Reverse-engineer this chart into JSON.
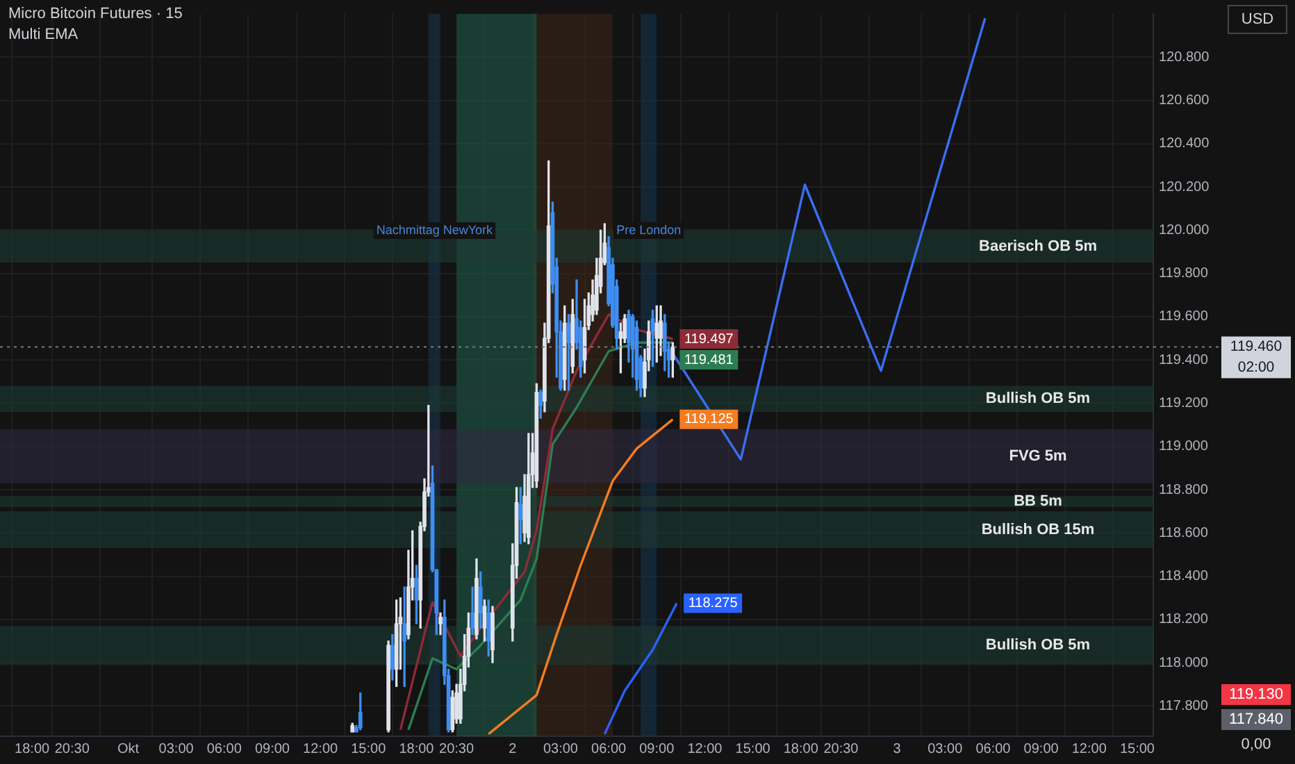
{
  "chart_data": {
    "type": "candlestick",
    "title": "Micro Bitcoin Futures · 15",
    "subtitle": "Multi EMA",
    "x": [
      "--10-01T14:00",
      "--10-01T14:15",
      "--10-01T14:30",
      "--10-01T16:15",
      "--10-01T16:30",
      "--10-01T16:45",
      "--10-01T17:00",
      "--10-01T17:15",
      "--10-01T17:30",
      "--10-01T17:45",
      "--10-01T18:00",
      "--10-01T18:15",
      "--10-01T18:30",
      "--10-01T18:45",
      "--10-01T19:00",
      "--10-01T19:15",
      "--10-01T19:30",
      "--10-01T19:45",
      "--10-01T20:00",
      "--10-01T20:15",
      "--10-01T20:30",
      "--10-01T20:45",
      "--10-01T21:00",
      "--10-01T21:15",
      "--10-01T21:30",
      "--10-01T21:45",
      "--10-01T22:00",
      "--10-01T22:15",
      "--10-01T22:30",
      "--10-01T22:45",
      "--10-02T00:00",
      "--10-02T00:15",
      "--10-02T00:30",
      "--10-02T00:45",
      "--10-02T01:00",
      "--10-02T01:15",
      "--10-02T01:30",
      "--10-02T01:45",
      "--10-02T02:00",
      "--10-02T02:15",
      "--10-02T02:30",
      "--10-02T02:45",
      "--10-02T03:00",
      "--10-02T03:15",
      "--10-02T03:30",
      "--10-02T03:45",
      "--10-02T04:00",
      "--10-02T04:15",
      "--10-02T04:30",
      "--10-02T04:45",
      "--10-02T05:00",
      "--10-02T05:15",
      "--10-02T05:30",
      "--10-02T05:45",
      "--10-02T06:00",
      "--10-02T06:15",
      "--10-02T06:30",
      "--10-02T06:45",
      "--10-02T07:00",
      "--10-02T07:15",
      "--10-02T07:30",
      "--10-02T07:45",
      "--10-02T08:00",
      "--10-02T08:15",
      "--10-02T08:30",
      "--10-02T08:45",
      "--10-02T09:00",
      "--10-02T09:15",
      "--10-02T09:30",
      "--10-02T09:45",
      "--10-02T10:00"
    ],
    "ohlc": [
      [
        117.68,
        117.72,
        117.68,
        117.71
      ],
      [
        117.7,
        117.71,
        117.68,
        117.68
      ],
      [
        117.77,
        117.86,
        117.69,
        117.7
      ],
      [
        117.69,
        118.1,
        117.68,
        118.08
      ],
      [
        118.08,
        118.13,
        117.92,
        117.97
      ],
      [
        117.97,
        118.29,
        117.89,
        118.18
      ],
      [
        118.18,
        118.3,
        117.97,
        118.21
      ],
      [
        118.18,
        118.35,
        117.89,
        118.1
      ],
      [
        118.13,
        118.52,
        118.11,
        118.35
      ],
      [
        118.35,
        118.61,
        118.29,
        118.39
      ],
      [
        118.39,
        118.45,
        118.18,
        118.29
      ],
      [
        118.29,
        118.65,
        118.16,
        118.63
      ],
      [
        118.63,
        118.85,
        118.61,
        118.79
      ],
      [
        118.79,
        119.19,
        118.77,
        118.81
      ],
      [
        118.83,
        118.91,
        118.42,
        118.43
      ],
      [
        118.43,
        118.43,
        118.13,
        118.23
      ],
      [
        118.18,
        118.23,
        118.13,
        118.21
      ],
      [
        118.21,
        118.29,
        117.9,
        117.94
      ],
      [
        117.94,
        117.97,
        117.68,
        117.69
      ],
      [
        117.69,
        117.87,
        117.68,
        117.84
      ],
      [
        117.74,
        117.9,
        117.72,
        117.86
      ],
      [
        117.74,
        117.97,
        117.72,
        117.9
      ],
      [
        117.9,
        118.13,
        117.87,
        118.03
      ],
      [
        118.03,
        118.23,
        117.98,
        118.16
      ],
      [
        118.23,
        118.35,
        118.13,
        118.16
      ],
      [
        118.13,
        118.48,
        118.11,
        118.39
      ],
      [
        118.35,
        118.42,
        118.16,
        118.23
      ],
      [
        118.16,
        118.29,
        118.1,
        118.26
      ],
      [
        118.23,
        118.29,
        118.03,
        118.1
      ],
      [
        118.06,
        118.26,
        118,
        118.23
      ],
      [
        118.16,
        118.55,
        118.1,
        118.45
      ],
      [
        118.45,
        118.81,
        118.39,
        118.74
      ],
      [
        118.73,
        118.81,
        118.55,
        118.66
      ],
      [
        118.6,
        118.87,
        118.56,
        118.77
      ],
      [
        118.58,
        119.06,
        118.55,
        118.87
      ],
      [
        118.87,
        119.06,
        118.81,
        118.97
      ],
      [
        118.84,
        119.29,
        118.81,
        119.25
      ],
      [
        119.25,
        119.26,
        119.13,
        119.19
      ],
      [
        119.21,
        119.57,
        119.16,
        119.5
      ],
      [
        119.5,
        120.32,
        119.48,
        120.02
      ],
      [
        120.08,
        120.13,
        119.71,
        119.75
      ],
      [
        119.83,
        119.87,
        119.32,
        119.53
      ],
      [
        119.53,
        119.58,
        119.26,
        119.27
      ],
      [
        119.31,
        119.65,
        119.26,
        119.57
      ],
      [
        119.57,
        119.61,
        119.26,
        119.48
      ],
      [
        119.37,
        119.68,
        119.34,
        119.61
      ],
      [
        119.59,
        119.77,
        119.45,
        119.48
      ],
      [
        119.55,
        119.58,
        119.32,
        119.37
      ],
      [
        119.4,
        119.68,
        119.34,
        119.55
      ],
      [
        119.56,
        119.71,
        119.54,
        119.65
      ],
      [
        119.61,
        119.77,
        119.58,
        119.7
      ],
      [
        119.63,
        119.87,
        119.61,
        119.79
      ],
      [
        119.74,
        120,
        119.71,
        119.87
      ],
      [
        119.85,
        120.03,
        119.84,
        119.94
      ],
      [
        119.92,
        119.97,
        119.65,
        119.66
      ],
      [
        119.84,
        119.87,
        119.55,
        119.56
      ],
      [
        119.74,
        119.77,
        119.45,
        119.5
      ],
      [
        119.5,
        119.57,
        119.34,
        119.53
      ],
      [
        119.5,
        119.61,
        119.48,
        119.59
      ],
      [
        119.61,
        119.63,
        119.39,
        119.48
      ],
      [
        119.6,
        119.61,
        119.32,
        119.45
      ],
      [
        119.55,
        119.58,
        119.26,
        119.31
      ],
      [
        119.41,
        119.42,
        119.23,
        119.27
      ],
      [
        119.27,
        119.45,
        119.23,
        119.39
      ],
      [
        119.4,
        119.58,
        119.35,
        119.53
      ],
      [
        119.59,
        119.63,
        119.37,
        119.53
      ],
      [
        119.5,
        119.65,
        119.39,
        119.57
      ],
      [
        119.5,
        119.65,
        119.42,
        119.58
      ],
      [
        119.57,
        119.61,
        119.35,
        119.44
      ],
      [
        119.45,
        119.48,
        119.32,
        119.4
      ],
      [
        119.4,
        119.48,
        119.32,
        119.46
      ]
    ],
    "series": [
      {
        "type": "line",
        "color": "#8e2b36",
        "x": [
          "--10-01T17:00",
          "--10-01T19:00",
          "--10-01T20:45",
          "--10-01T22:00",
          "--10-02T00:45",
          "--10-02T01:30",
          "--10-02T02:30",
          "--10-02T04:00",
          "--10-02T06:00",
          "--10-02T07:45",
          "--10-02T10:00"
        ],
        "values": [
          117.69,
          118.28,
          118.03,
          118.16,
          118.42,
          118.61,
          119.08,
          119.35,
          119.61,
          119.54,
          119.497
        ],
        "value_labels": [
          null,
          null,
          null,
          null,
          null,
          null,
          null,
          null,
          null,
          null,
          "119.497"
        ]
      },
      {
        "type": "line",
        "color": "#2e7d52",
        "x": [
          "--10-01T17:30",
          "--10-01T19:00",
          "--10-01T20:30",
          "--10-01T22:00",
          "--10-02T00:30",
          "--10-02T01:30",
          "--10-02T02:30",
          "--10-02T04:00",
          "--10-02T06:00",
          "--10-02T07:45",
          "--10-02T10:00"
        ],
        "values": [
          117.69,
          118.02,
          117.97,
          118.08,
          118.29,
          118.48,
          119.01,
          119.18,
          119.44,
          119.48,
          119.481
        ],
        "value_labels": [
          null,
          null,
          null,
          null,
          null,
          null,
          null,
          null,
          null,
          null,
          "119.481"
        ]
      },
      {
        "type": "line",
        "color": "#f57c20",
        "x": [
          "--10-01T22:30",
          "--10-02T01:30",
          "--10-02T02:45",
          "--10-02T04:15",
          "--10-02T06:15",
          "--10-02T07:45",
          "--10-02T10:00"
        ],
        "values": [
          117.67,
          117.85,
          118.13,
          118.45,
          118.84,
          118.99,
          119.125
        ],
        "value_labels": [
          null,
          null,
          null,
          null,
          null,
          null,
          "119.125"
        ]
      },
      {
        "type": "line",
        "color": "#2962ff",
        "x": [
          "--10-02T05:45",
          "--10-02T07:00",
          "--10-02T08:45",
          "--10-02T10:15"
        ],
        "values": [
          117.67,
          117.87,
          118.06,
          118.275
        ],
        "value_labels": [
          null,
          null,
          null,
          "118.275"
        ]
      },
      {
        "type": "line",
        "color": "#3a6ef5",
        "x": [
          "--10-02T10:00",
          "--10-02T14:15",
          "--10-02T18:15",
          "--10-02T23:00",
          "--10-03T05:30"
        ],
        "values": [
          119.43,
          118.94,
          120.21,
          119.35,
          120.98
        ]
      }
    ],
    "xlim": [
      "--09-30T16:00",
      "--10-03T16:00"
    ],
    "xticks": [
      {
        "value": "--09-30T18:00",
        "label": "18:00"
      },
      {
        "value": "--09-30T20:30",
        "label": "20:30"
      },
      {
        "value": "--10-01T00:00",
        "label": "Okt"
      },
      {
        "value": "--10-01T03:00",
        "label": "03:00"
      },
      {
        "value": "--10-01T06:00",
        "label": "06:00"
      },
      {
        "value": "--10-01T09:00",
        "label": "09:00"
      },
      {
        "value": "--10-01T12:00",
        "label": "12:00"
      },
      {
        "value": "--10-01T15:00",
        "label": "15:00"
      },
      {
        "value": "--10-01T18:00",
        "label": "18:00"
      },
      {
        "value": "--10-01T20:30",
        "label": "20:30"
      },
      {
        "value": "--10-02T00:00",
        "label": "2"
      },
      {
        "value": "--10-02T03:00",
        "label": "03:00"
      },
      {
        "value": "--10-02T06:00",
        "label": "06:00"
      },
      {
        "value": "--10-02T09:00",
        "label": "09:00"
      },
      {
        "value": "--10-02T12:00",
        "label": "12:00"
      },
      {
        "value": "--10-02T15:00",
        "label": "15:00"
      },
      {
        "value": "--10-02T18:00",
        "label": "18:00"
      },
      {
        "value": "--10-02T20:30",
        "label": "20:30"
      },
      {
        "value": "--10-03T00:00",
        "label": "3"
      },
      {
        "value": "--10-03T03:00",
        "label": "03:00"
      },
      {
        "value": "--10-03T06:00",
        "label": "06:00"
      },
      {
        "value": "--10-03T09:00",
        "label": "09:00"
      },
      {
        "value": "--10-03T12:00",
        "label": "12:00"
      },
      {
        "value": "--10-03T15:00",
        "label": "15:00"
      }
    ],
    "ylim": [
      117.66,
      121.0
    ],
    "yticks": [
      {
        "value": 117.8,
        "label": "117.800"
      },
      {
        "value": 118,
        "label": "118.000"
      },
      {
        "value": 118.2,
        "label": "118.200"
      },
      {
        "value": 118.4,
        "label": "118.400"
      },
      {
        "value": 118.6,
        "label": "118.600"
      },
      {
        "value": 118.8,
        "label": "118.800"
      },
      {
        "value": 119,
        "label": "119.000"
      },
      {
        "value": 119.2,
        "label": "119.200"
      },
      {
        "value": 119.4,
        "label": "119.400"
      },
      {
        "value": 119.6,
        "label": "119.600"
      },
      {
        "value": 119.8,
        "label": "119.800"
      },
      {
        "value": 120,
        "label": "120.000"
      },
      {
        "value": 120.2,
        "label": "120.200"
      },
      {
        "value": 120.4,
        "label": "120.400"
      },
      {
        "value": 120.6,
        "label": "120.600"
      },
      {
        "value": 120.8,
        "label": "120.800"
      }
    ],
    "grid": true,
    "bands": [
      {
        "axis": "x",
        "from": "--10-02T01:15",
        "to": "--10-02T06:15",
        "label": null,
        "color": "#3a2418"
      },
      {
        "axis": "x",
        "from": "--10-01T20:30",
        "to": "--10-02T01:30",
        "label": null,
        "color": "#1e5a48"
      },
      {
        "axis": "x",
        "from": "--10-01T18:45",
        "to": "--10-01T19:30",
        "label": "Nachmittag NewYork",
        "color": "#15324a"
      },
      {
        "axis": "x",
        "from": "--10-02T08:00",
        "to": "--10-02T09:00",
        "label": "Pre London",
        "color": "#15324a"
      },
      {
        "axis": "y",
        "from": 119.85,
        "to": 120,
        "label": "Baerisch OB 5m",
        "color": "#1d3a33"
      },
      {
        "axis": "y",
        "from": 119.16,
        "to": 119.28,
        "label": "Bullish OB 5m",
        "color": "#1d3a33"
      },
      {
        "axis": "y",
        "from": 118.83,
        "to": 119.08,
        "label": "FVG 5m",
        "color": "#2e2a40"
      },
      {
        "axis": "y",
        "from": 118.72,
        "to": 118.77,
        "label": "BB 5m",
        "color": "#1d3a33"
      },
      {
        "axis": "y",
        "from": 118.53,
        "to": 118.7,
        "label": "Bullish OB 15m",
        "color": "#1d3a33"
      },
      {
        "axis": "y",
        "from": 117.99,
        "to": 118.17,
        "label": "Bullish OB 5m",
        "color": "#1d3a33"
      }
    ],
    "ref_lines": [
      {
        "axis": "y",
        "value": 119.46,
        "label": "119.460 02:00",
        "color": "#787b86",
        "line_style": "dotted"
      }
    ],
    "annotations": [
      "USD",
      "0,00",
      "117.840",
      "119.130"
    ]
  }
}
